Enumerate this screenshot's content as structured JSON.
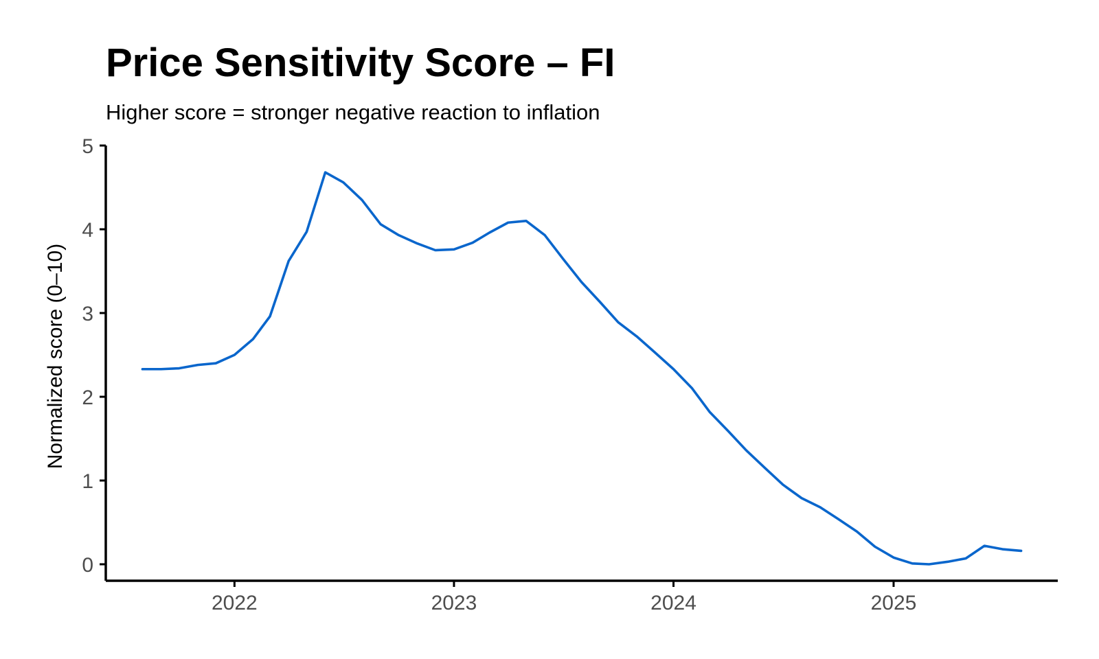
{
  "chart_data": {
    "type": "line",
    "title": "Price Sensitivity Score – FI",
    "subtitle": "Higher score = stronger negative reaction to inflation",
    "xlabel": "",
    "ylabel": "Normalized score (0–10)",
    "ylim": [
      0,
      5
    ],
    "xlim": [
      "2021-06-01",
      "2025-10-01"
    ],
    "yticks": [
      "0",
      "1",
      "2",
      "3",
      "4",
      "5"
    ],
    "xticks": [
      {
        "date": "2022-01-01",
        "label": "2022"
      },
      {
        "date": "2023-01-01",
        "label": "2023"
      },
      {
        "date": "2024-01-01",
        "label": "2024"
      },
      {
        "date": "2025-01-01",
        "label": "2025"
      }
    ],
    "grid": false,
    "legend": "none",
    "line_color": "#0A66CC",
    "series": [
      {
        "x": [
          "2021-08-01",
          "2021-09-01",
          "2021-10-01",
          "2021-11-01",
          "2021-12-01",
          "2022-01-01",
          "2022-02-01",
          "2022-03-01",
          "2022-04-01",
          "2022-05-01",
          "2022-06-01",
          "2022-07-01",
          "2022-08-01",
          "2022-09-01",
          "2022-10-01",
          "2022-11-01",
          "2022-12-01",
          "2023-01-01",
          "2023-02-01",
          "2023-03-01",
          "2023-04-01",
          "2023-05-01",
          "2023-06-01",
          "2023-07-01",
          "2023-08-01",
          "2023-09-01",
          "2023-10-01",
          "2023-11-01",
          "2023-12-01",
          "2024-01-01",
          "2024-02-01",
          "2024-03-01",
          "2024-04-01",
          "2024-05-01",
          "2024-06-01",
          "2024-07-01",
          "2024-08-01",
          "2024-09-01",
          "2024-10-01",
          "2024-11-01",
          "2024-12-01",
          "2025-01-01",
          "2025-02-01",
          "2025-03-01",
          "2025-04-01",
          "2025-05-01",
          "2025-06-01",
          "2025-07-01",
          "2025-08-01"
        ],
        "values": [
          2.33,
          2.33,
          2.34,
          2.38,
          2.4,
          2.5,
          2.69,
          2.96,
          3.62,
          3.97,
          4.68,
          4.56,
          4.35,
          4.06,
          3.93,
          3.83,
          3.75,
          3.76,
          3.84,
          3.96,
          4.08,
          4.1,
          3.93,
          3.65,
          3.37,
          3.13,
          2.89,
          2.72,
          2.53,
          2.33,
          2.1,
          1.82,
          1.59,
          1.36,
          1.15,
          0.95,
          0.79,
          0.68,
          0.54,
          0.39,
          0.21,
          0.08,
          0.01,
          0.0,
          0.03,
          0.07,
          0.22,
          0.18,
          0.16
        ]
      }
    ]
  }
}
